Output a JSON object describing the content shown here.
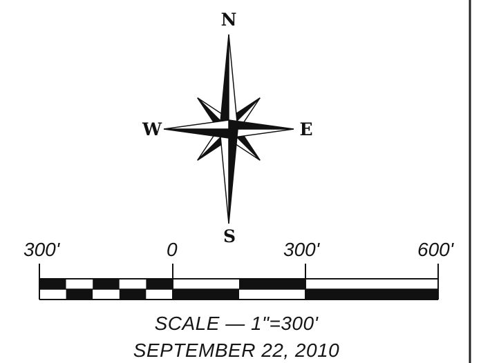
{
  "compass": {
    "north": "N",
    "east": "E",
    "south": "S",
    "west": "W"
  },
  "scale_bar": {
    "tick_labels": [
      "300'",
      "0",
      "300'",
      "600'"
    ]
  },
  "caption": {
    "scale": "SCALE — 1\"=300'",
    "date": "SEPTEMBER 22, 2010"
  },
  "colors": {
    "ink": "#111111",
    "paper": "#ffffff"
  }
}
